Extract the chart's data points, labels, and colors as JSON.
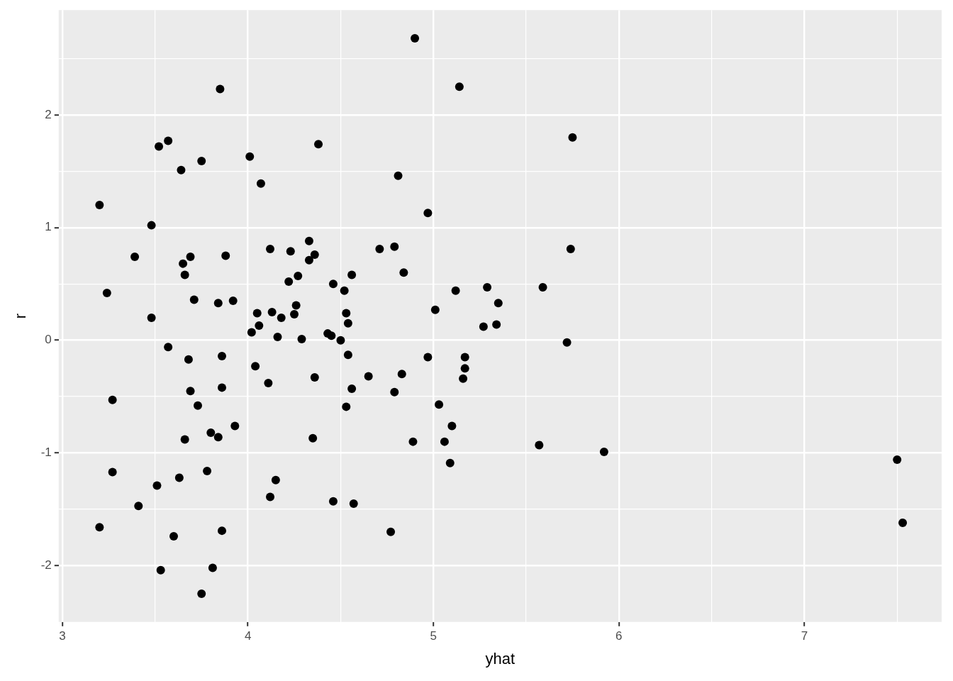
{
  "chart_data": {
    "type": "scatter",
    "xlabel": "yhat",
    "ylabel": "r",
    "color": "#000000",
    "marker": "circle",
    "grid": true,
    "xlim": [
      2.98,
      7.74
    ],
    "ylim": [
      -2.5,
      2.93
    ],
    "xticks": [
      3,
      {
        "value": 3.5,
        "label": null
      },
      4,
      {
        "value": 4.5,
        "label": null
      },
      5,
      {
        "value": 5.5,
        "label": null
      },
      6,
      {
        "value": 6.5,
        "label": null
      },
      7,
      {
        "value": 7.5,
        "label": null
      }
    ],
    "yticks": [
      -2,
      {
        "value": -1.5,
        "label": null
      },
      -1,
      {
        "value": -0.5,
        "label": null
      },
      0,
      {
        "value": 0.5,
        "label": null
      },
      1,
      {
        "value": 1.5,
        "label": null
      },
      2,
      {
        "value": 2.5,
        "label": null
      }
    ],
    "x": [
      3.85,
      3.52,
      3.57,
      4.38,
      4.01,
      3.75,
      3.64,
      4.07,
      3.2,
      3.48,
      4.33,
      3.39,
      3.69,
      3.88,
      4.12,
      4.23,
      4.36,
      4.33,
      3.65,
      3.66,
      4.56,
      4.27,
      4.22,
      4.46,
      4.52,
      3.24,
      3.71,
      3.84,
      3.92,
      4.26,
      4.05,
      4.13,
      4.18,
      4.25,
      4.53,
      4.54,
      3.48,
      4.06,
      4.02,
      4.16,
      4.29,
      4.43,
      4.45,
      4.5,
      4.54,
      4.56,
      4.53,
      3.57,
      3.68,
      3.86,
      4.04,
      4.36,
      4.11,
      3.69,
      3.86,
      3.27,
      3.73,
      3.93,
      3.8,
      3.84,
      3.66,
      4.35,
      3.27,
      3.78,
      3.63,
      4.15,
      3.51,
      4.12,
      3.41,
      4.46,
      4.57,
      3.2,
      3.6,
      3.86,
      3.53,
      3.81,
      3.75,
      4.9,
      5.14,
      5.75,
      4.81,
      4.97,
      4.71,
      4.79,
      5.74,
      4.84,
      5.12,
      5.29,
      5.59,
      5.35,
      5.01,
      5.27,
      5.34,
      5.72,
      4.97,
      5.17,
      5.17,
      5.16,
      4.65,
      4.83,
      4.79,
      5.03,
      5.1,
      4.89,
      5.06,
      5.57,
      5.92,
      5.09,
      4.77,
      7.5,
      7.53
    ],
    "values": [
      2.23,
      1.72,
      1.77,
      1.74,
      1.63,
      1.59,
      1.51,
      1.39,
      1.2,
      1.02,
      0.88,
      0.74,
      0.74,
      0.75,
      0.81,
      0.79,
      0.76,
      0.71,
      0.68,
      0.58,
      0.58,
      0.57,
      0.52,
      0.5,
      0.44,
      0.42,
      0.36,
      0.33,
      0.35,
      0.31,
      0.24,
      0.25,
      0.2,
      0.23,
      0.24,
      0.15,
      0.2,
      0.13,
      0.07,
      0.03,
      0.01,
      0.06,
      0.04,
      0,
      -0.13,
      -0.43,
      -0.59,
      -0.06,
      -0.17,
      -0.14,
      -0.23,
      -0.33,
      -0.38,
      -0.45,
      -0.42,
      -0.53,
      -0.58,
      -0.76,
      -0.82,
      -0.86,
      -0.88,
      -0.87,
      -1.17,
      -1.16,
      -1.22,
      -1.24,
      -1.29,
      -1.39,
      -1.47,
      -1.43,
      -1.45,
      -1.66,
      -1.74,
      -1.69,
      -2.04,
      -2.02,
      -2.25,
      2.68,
      2.25,
      1.8,
      1.46,
      1.13,
      0.81,
      0.83,
      0.81,
      0.6,
      0.44,
      0.47,
      0.47,
      0.33,
      0.27,
      0.12,
      0.14,
      -0.02,
      -0.15,
      -0.15,
      -0.25,
      -0.34,
      -0.32,
      -0.3,
      -0.46,
      -0.57,
      -0.76,
      -0.9,
      -0.9,
      -0.93,
      -0.99,
      -1.09,
      -1.7,
      -1.06,
      -1.62
    ]
  }
}
